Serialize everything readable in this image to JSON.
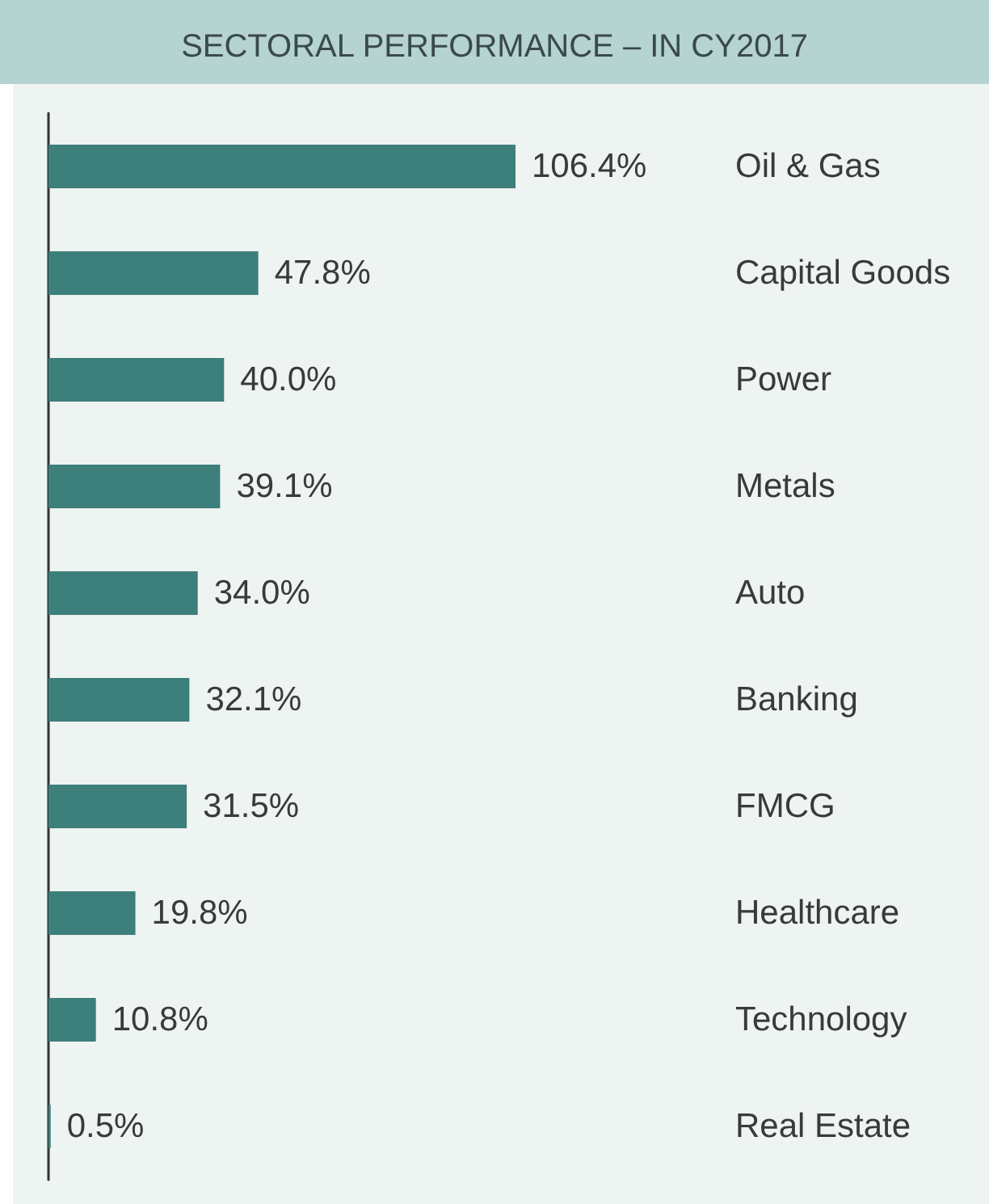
{
  "chart_data": {
    "type": "bar",
    "orientation": "horizontal",
    "title": "SECTORAL PERFORMANCE – IN CY2017",
    "categories": [
      "Oil & Gas",
      "Capital Goods",
      "Power",
      "Metals",
      "Auto",
      "Banking",
      "FMCG",
      "Healthcare",
      "Technology",
      "Real Estate"
    ],
    "values": [
      106.4,
      47.8,
      40.0,
      39.1,
      34.0,
      32.1,
      31.5,
      19.8,
      10.8,
      0.5
    ],
    "value_labels": [
      "106.4%",
      "47.8%",
      "40.0%",
      "39.1%",
      "34.0%",
      "32.1%",
      "31.5%",
      "19.8%",
      "10.8%",
      "0.5%"
    ],
    "color": "#3d7f7a"
  }
}
